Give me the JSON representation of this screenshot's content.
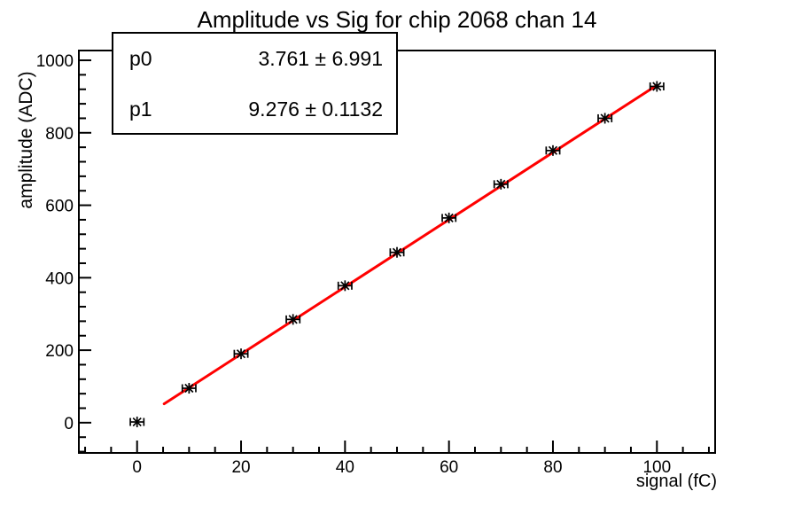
{
  "chart_data": {
    "type": "scatter",
    "title": "Amplitude vs Sig for chip 2068 chan 14",
    "xlabel": "signal (fC)",
    "ylabel": "amplitude (ADC)",
    "xlim": [
      -11.2,
      111.2
    ],
    "ylim": [
      -83.5,
      1027
    ],
    "grid": false,
    "legend_position": "none",
    "x_major_ticks": [
      0,
      20,
      40,
      60,
      80,
      100
    ],
    "x_minor_step": 5,
    "y_major_ticks": [
      0,
      200,
      400,
      600,
      800,
      1000
    ],
    "y_minor_step": 40,
    "points": {
      "x": [
        0,
        10,
        20,
        30,
        40,
        50,
        60,
        70,
        80,
        90,
        100
      ],
      "y": [
        2,
        95,
        190,
        285,
        378,
        470,
        565,
        658,
        751,
        840,
        928
      ],
      "xerr": 1.3
    },
    "fit": {
      "label": "linear",
      "p0": 3.761,
      "p1": 9.276,
      "range": [
        5.2,
        100
      ],
      "color": "#ff0000"
    },
    "marker": {
      "style": "asterisk",
      "color": "#000000"
    },
    "stat_box": {
      "rows": [
        {
          "label": "p0",
          "value": "3.761 ± 6.991"
        },
        {
          "label": "p1",
          "value": "9.276 ± 0.1132"
        }
      ]
    }
  }
}
